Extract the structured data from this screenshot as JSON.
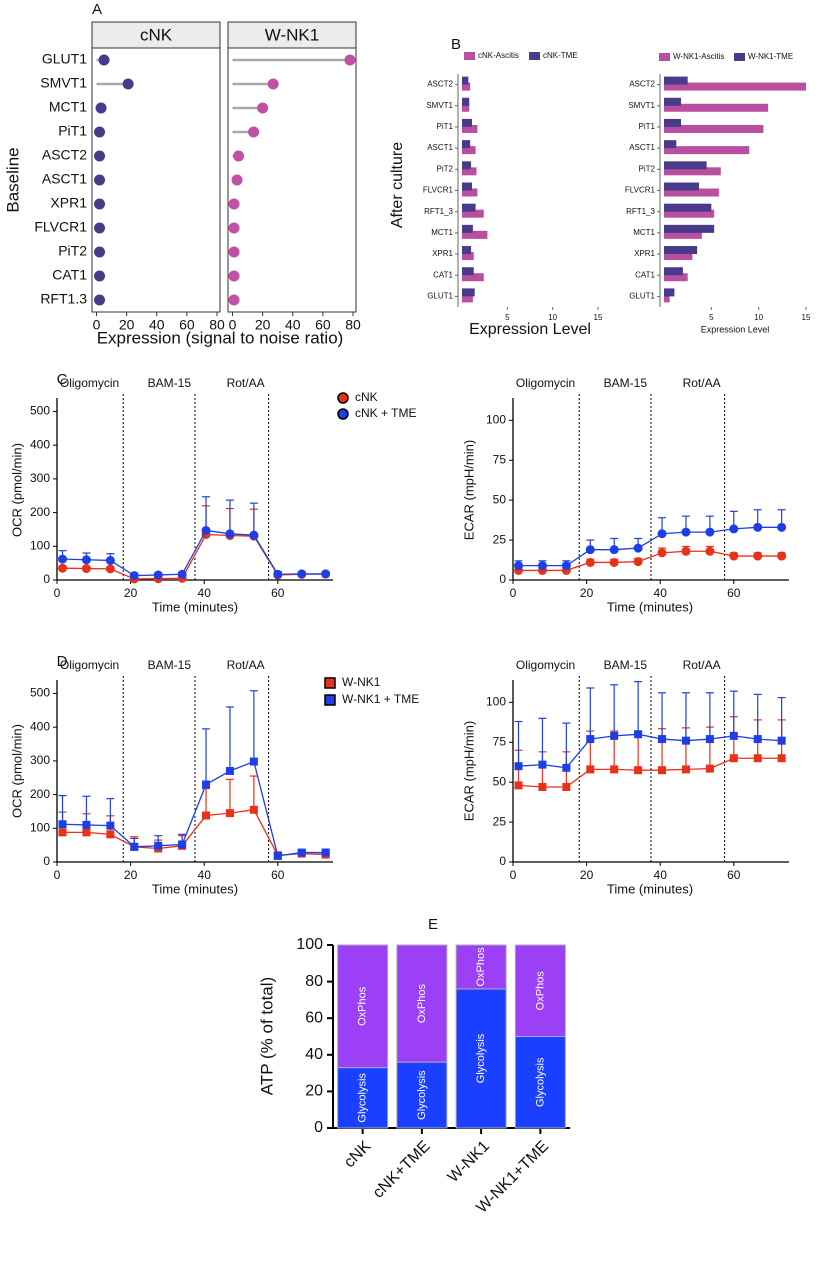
{
  "chart_data": [
    {
      "type": "lollipop",
      "panel": "A",
      "ylabel": "Baseline",
      "xlabel": "Expression (signal to noise ratio)",
      "categories": [
        "GLUT1",
        "SMVT1",
        "MCT1",
        "PiT1",
        "ASCT2",
        "ASCT1",
        "XPR1",
        "FLVCR1",
        "PiT2",
        "CAT1",
        "RFT1.3"
      ],
      "series": [
        {
          "name": "cNK",
          "color": "#4b3a8c",
          "values": [
            5,
            21,
            3,
            2,
            2,
            2,
            2,
            2,
            2,
            2,
            2
          ]
        },
        {
          "name": "W-NK1",
          "color": "#c24fa6",
          "values": [
            78,
            27,
            20,
            14,
            4,
            3,
            1,
            1,
            1,
            1,
            1
          ]
        }
      ],
      "xlim": [
        -3,
        82
      ],
      "xticks": [
        0,
        20,
        40,
        60,
        80
      ]
    },
    {
      "type": "hbar",
      "panel": "B",
      "ylabel": "After culture",
      "xlabel": "Expression Level",
      "categories": [
        "ASCT2",
        "SMVT1",
        "PiT1",
        "ASCT1",
        "PiT2",
        "FLVCR1",
        "RFT1_3",
        "MCT1",
        "XPR1",
        "CAT1",
        "GLUT1"
      ],
      "series": [
        {
          "name": "cNK-Ascitis",
          "color": "#b94fa0",
          "values": [
            0.9,
            0.8,
            1.7,
            1.5,
            1.6,
            1.7,
            2.4,
            2.8,
            1.3,
            2.4,
            1.2
          ]
        },
        {
          "name": "cNK-TME",
          "color": "#4a3a8a",
          "values": [
            0.7,
            0.8,
            1.1,
            0.9,
            1.0,
            1.1,
            1.5,
            1.2,
            1.0,
            1.3,
            1.4
          ]
        }
      ],
      "xlim": [
        0,
        15
      ],
      "xticks": [
        5,
        10,
        15
      ]
    },
    {
      "type": "hbar",
      "xlabel": "Expression Level",
      "categories": [
        "ASCT2",
        "SMVT1",
        "PiT1",
        "ASCT1",
        "PiT2",
        "FLVCR1",
        "RFT1_3",
        "MCT1",
        "XPR1",
        "CAT1",
        "GLUT1"
      ],
      "series": [
        {
          "name": "W-NK1-Ascitis",
          "color": "#b94fa0",
          "values": [
            15,
            11,
            10.5,
            9,
            6,
            5.8,
            5.3,
            4,
            3,
            2.5,
            0.6
          ]
        },
        {
          "name": "W-NK1-TME",
          "color": "#4a3a8a",
          "values": [
            2.5,
            1.8,
            1.8,
            1.3,
            4.5,
            3.7,
            5,
            5.3,
            3.5,
            2,
            1.1
          ]
        }
      ],
      "xlim": [
        0,
        15
      ],
      "xticks": [
        5,
        10,
        15
      ]
    },
    {
      "type": "line",
      "panel": "C",
      "ylabel": "OCR (pmol/min)",
      "xlabel": "Time (minutes)",
      "x": [
        1.5,
        8,
        14.5,
        21,
        27.5,
        34,
        40.5,
        47,
        53.5,
        60,
        66.5,
        73
      ],
      "series": [
        {
          "name": "cNK",
          "color": "#e8301a",
          "marker": "circle",
          "values": [
            35,
            34,
            33,
            3,
            4,
            5,
            135,
            132,
            130,
            15,
            17,
            18
          ],
          "errors": [
            6,
            6,
            6,
            3,
            3,
            3,
            85,
            80,
            80,
            5,
            4,
            4
          ]
        },
        {
          "name": "cNK + TME",
          "color": "#1f3fe6",
          "marker": "circle",
          "values": [
            62,
            60,
            58,
            13,
            15,
            17,
            147,
            137,
            133,
            17,
            18,
            18
          ],
          "errors": [
            25,
            20,
            20,
            5,
            5,
            5,
            100,
            100,
            95,
            8,
            5,
            5
          ]
        }
      ],
      "annotations": [
        {
          "x": 18,
          "label": "Oligomycin"
        },
        {
          "x": 37.5,
          "label": "BAM-15"
        },
        {
          "x": 57.5,
          "label": "Rot/AA"
        }
      ],
      "xlim": [
        0,
        75
      ],
      "xticks": [
        0,
        20,
        40,
        60
      ],
      "ylim": [
        0,
        540
      ],
      "yticks": [
        0,
        100,
        200,
        300,
        400,
        500
      ]
    },
    {
      "type": "line",
      "ylabel": "ECAR (mpH/min)",
      "xlabel": "Time (minutes)",
      "x": [
        1.5,
        8,
        14.5,
        21,
        27.5,
        34,
        40.5,
        47,
        53.5,
        60,
        66.5,
        73
      ],
      "series": [
        {
          "color": "#e8301a",
          "marker": "circle",
          "values": [
            6,
            6,
            6,
            11,
            11,
            11.5,
            17,
            18,
            18,
            15,
            15,
            15
          ],
          "errors": [
            2,
            2,
            2,
            2,
            2,
            2,
            3,
            3,
            3,
            2,
            2,
            2
          ]
        },
        {
          "color": "#1f3fe6",
          "marker": "circle",
          "values": [
            9,
            9,
            9,
            19,
            19,
            20,
            29,
            30,
            30,
            32,
            33,
            33
          ],
          "errors": [
            3,
            3,
            3,
            6,
            7,
            6,
            10,
            10,
            10,
            11,
            11,
            11
          ]
        }
      ],
      "annotations": [
        {
          "x": 18,
          "label": "Oligomycin"
        },
        {
          "x": 37.5,
          "label": "BAM-15"
        },
        {
          "x": 57.5,
          "label": "Rot/AA"
        }
      ],
      "xlim": [
        0,
        75
      ],
      "xticks": [
        0,
        20,
        40,
        60
      ],
      "ylim": [
        0,
        114
      ],
      "yticks": [
        0,
        25,
        50,
        75,
        100
      ]
    },
    {
      "type": "line",
      "panel": "D",
      "ylabel": "OCR (pmol/min)",
      "xlabel": "Time (minutes)",
      "x": [
        1.5,
        8,
        14.5,
        21,
        27.5,
        34,
        40.5,
        47,
        53.5,
        60,
        66.5,
        73
      ],
      "series": [
        {
          "name": "W-NK1",
          "color": "#e8301a",
          "marker": "square",
          "values": [
            88,
            88,
            82,
            45,
            40,
            48,
            138,
            145,
            155,
            20,
            25,
            22
          ],
          "errors": [
            60,
            55,
            55,
            30,
            25,
            30,
            80,
            100,
            100,
            8,
            6,
            8
          ]
        },
        {
          "name": "W-NK1 + TME",
          "color": "#1f3fe6",
          "marker": "square",
          "values": [
            112,
            110,
            108,
            45,
            48,
            52,
            230,
            270,
            298,
            18,
            28,
            28
          ],
          "errors": [
            85,
            85,
            80,
            25,
            30,
            30,
            165,
            190,
            210,
            10,
            8,
            10
          ]
        }
      ],
      "annotations": [
        {
          "x": 18,
          "label": "Oligomycin"
        },
        {
          "x": 37.5,
          "label": "BAM-15"
        },
        {
          "x": 57.5,
          "label": "Rot/AA"
        }
      ],
      "xlim": [
        0,
        75
      ],
      "xticks": [
        0,
        20,
        40,
        60
      ],
      "ylim": [
        0,
        540
      ],
      "yticks": [
        0,
        100,
        200,
        300,
        400,
        500
      ]
    },
    {
      "type": "line",
      "ylabel": "ECAR (mpH/min)",
      "xlabel": "Time (minutes)",
      "x": [
        1.5,
        8,
        14.5,
        21,
        27.5,
        34,
        40.5,
        47,
        53.5,
        60,
        66.5,
        73
      ],
      "series": [
        {
          "color": "#e8301a",
          "marker": "square",
          "values": [
            48,
            47,
            47,
            58,
            58,
            57.5,
            57.5,
            58,
            58.5,
            65,
            65,
            65
          ],
          "errors": [
            22,
            22,
            22,
            24,
            24,
            24,
            26,
            26,
            26,
            26,
            24,
            24
          ]
        },
        {
          "color": "#1f3fe6",
          "marker": "square",
          "values": [
            60,
            61,
            59,
            77,
            79,
            80,
            77,
            76,
            77,
            79,
            77,
            76
          ],
          "errors": [
            28,
            29,
            28,
            32,
            32,
            33,
            29,
            30,
            29,
            28,
            28,
            27
          ]
        }
      ],
      "annotations": [
        {
          "x": 18,
          "label": "Oligomycin"
        },
        {
          "x": 37.5,
          "label": "BAM-15"
        },
        {
          "x": 57.5,
          "label": "Rot/AA"
        }
      ],
      "xlim": [
        0,
        75
      ],
      "xticks": [
        0,
        20,
        40,
        60
      ],
      "ylim": [
        0,
        114
      ],
      "yticks": [
        0,
        25,
        50,
        75,
        100
      ]
    },
    {
      "type": "stacked_bar",
      "panel": "E",
      "ylabel": "ATP (% of total)",
      "categories": [
        "cNK",
        "cNK+TME",
        "W-NK1",
        "W-NK1+TME"
      ],
      "series": [
        {
          "name": "Glycolysis",
          "color": "#1a3fff",
          "values": [
            33,
            36,
            76,
            50
          ]
        },
        {
          "name": "OxPhos",
          "color": "#9b40f5",
          "values": [
            67,
            64,
            24,
            50
          ]
        }
      ],
      "ylim": [
        0,
        100
      ],
      "yticks": [
        0,
        20,
        40,
        60,
        80,
        100
      ]
    }
  ]
}
